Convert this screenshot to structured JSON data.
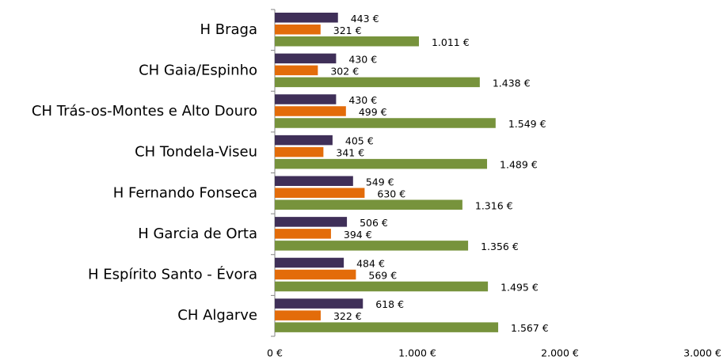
{
  "chart_data": {
    "type": "hbar",
    "categories": [
      "H Braga",
      "CH Gaia/Espinho",
      "CH Trás-os-Montes e Alto Douro",
      "CH Tondela-Viseu",
      "H Fernando Fonseca",
      "H Garcia de Orta",
      "H Espírito Santo - Évora",
      "CH Algarve"
    ],
    "series": [
      {
        "color": "#3f2f58",
        "values": [
          443,
          430,
          430,
          405,
          549,
          506,
          484,
          618
        ],
        "value_labels": [
          "443 €",
          "430 €",
          "430 €",
          "405 €",
          "549 €",
          "506 €",
          "484 €",
          "618 €"
        ]
      },
      {
        "color": "#e36c0a",
        "values": [
          321,
          302,
          499,
          341,
          630,
          394,
          569,
          322
        ],
        "value_labels": [
          "321 €",
          "302 €",
          "499 €",
          "341 €",
          "630 €",
          "394 €",
          "569 €",
          "322 €"
        ]
      },
      {
        "color": "#77933c",
        "values": [
          1011,
          1438,
          1549,
          1489,
          1316,
          1356,
          1495,
          1567
        ],
        "value_labels": [
          "1.011 €",
          "1.438 €",
          "1.549 €",
          "1.489 €",
          "1.316 €",
          "1.356 €",
          "1.495 €",
          "1.567 €"
        ]
      }
    ],
    "xlim": [
      0,
      3000
    ],
    "xticks": [
      {
        "value": 0,
        "label": "0 €"
      },
      {
        "value": 1000,
        "label": "1.000 €"
      },
      {
        "value": 2000,
        "label": "2.000 €"
      },
      {
        "value": 3000,
        "label": "3.000 €"
      }
    ]
  }
}
